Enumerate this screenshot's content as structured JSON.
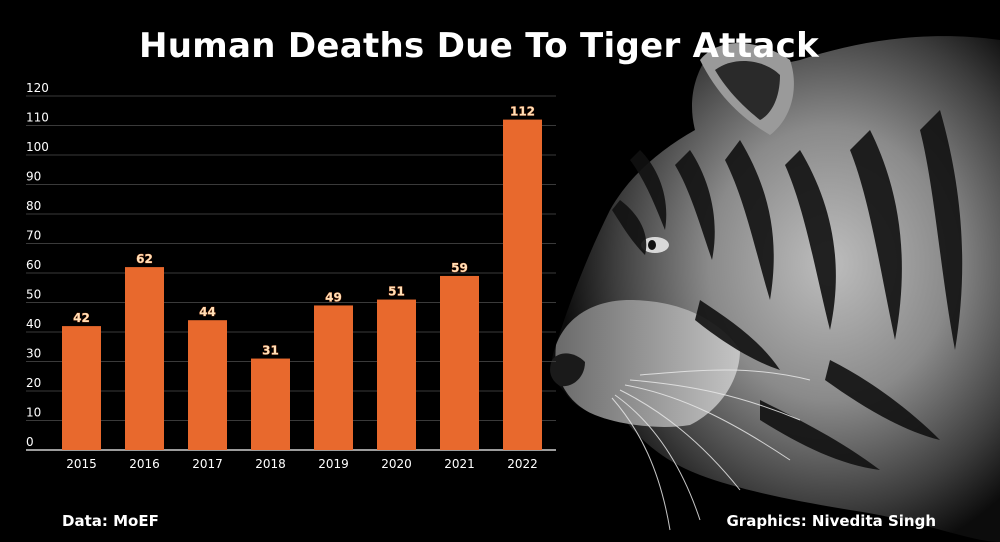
{
  "title": "Human Deaths Due To Tiger Attack",
  "source": "Data: MoEF",
  "credit": "Graphics: Nivedita Singh",
  "colors": {
    "bar": "#e8692d",
    "label": "#ffe0b8",
    "background": "#000000",
    "grid": "#3a3a3a",
    "text": "#ffffff"
  },
  "chart_data": {
    "type": "bar",
    "title": "Human Deaths Due To Tiger Attack",
    "xlabel": "",
    "ylabel": "",
    "categories": [
      "2015",
      "2016",
      "2017",
      "2018",
      "2019",
      "2020",
      "2021",
      "2022"
    ],
    "values": [
      42,
      62,
      44,
      31,
      49,
      51,
      59,
      112
    ],
    "ylim": [
      0,
      120
    ],
    "yticks": [
      0,
      10,
      20,
      30,
      40,
      50,
      60,
      70,
      80,
      90,
      100,
      110,
      120
    ],
    "grid": true,
    "data_labels": true
  },
  "background_image": "tiger-head-profile"
}
